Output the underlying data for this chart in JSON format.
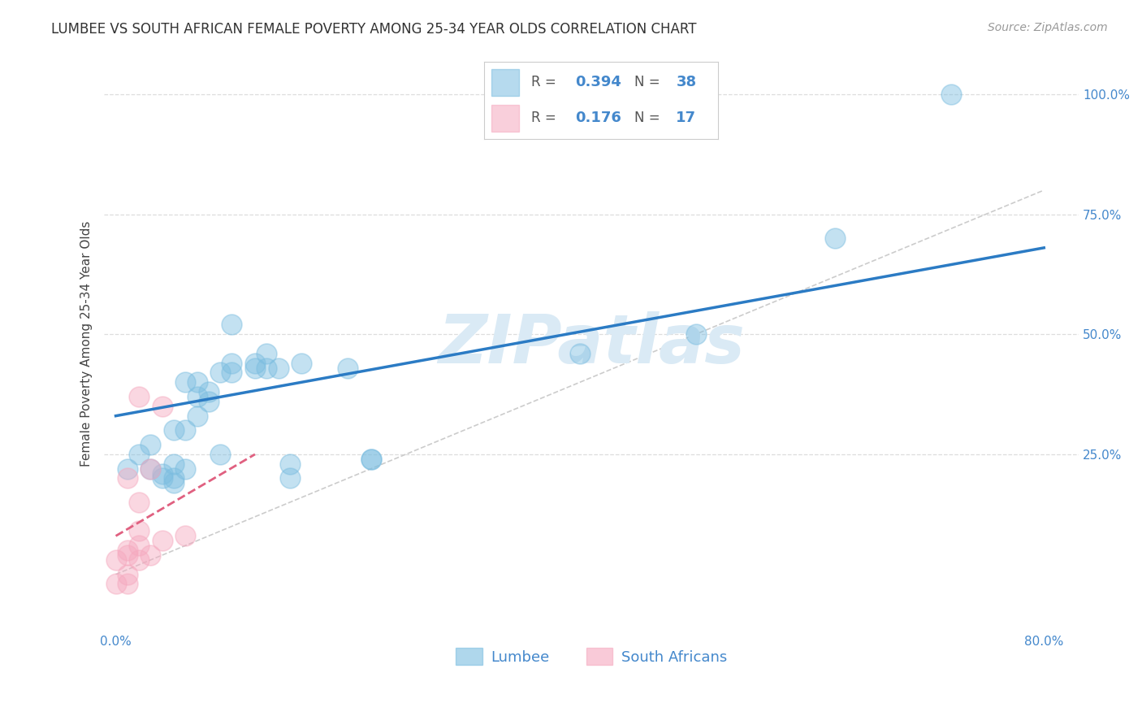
{
  "title": "LUMBEE VS SOUTH AFRICAN FEMALE POVERTY AMONG 25-34 YEAR OLDS CORRELATION CHART",
  "source": "Source: ZipAtlas.com",
  "ylabel": "Female Poverty Among 25-34 Year Olds",
  "legend_lumbee": "Lumbee",
  "legend_sa": "South Africans",
  "r_lumbee": 0.394,
  "n_lumbee": 38,
  "r_sa": 0.176,
  "n_sa": 17,
  "xlim": [
    -0.01,
    0.83
  ],
  "ylim": [
    -0.12,
    1.08
  ],
  "xtick_positions": [
    0.0,
    0.2,
    0.4,
    0.6,
    0.8
  ],
  "xtick_labels": [
    "0.0%",
    "",
    "",
    "",
    "80.0%"
  ],
  "ytick_positions": [
    0.25,
    0.5,
    0.75,
    1.0
  ],
  "ytick_labels": [
    "25.0%",
    "50.0%",
    "75.0%",
    "100.0%"
  ],
  "lumbee_color": "#7bbde0",
  "sa_color": "#f5a8be",
  "trendline_lumbee_color": "#2b7bc4",
  "trendline_sa_color": "#e06080",
  "watermark": "ZIPatlas",
  "lumbee_x": [
    0.01,
    0.02,
    0.03,
    0.03,
    0.04,
    0.04,
    0.05,
    0.05,
    0.05,
    0.05,
    0.06,
    0.06,
    0.06,
    0.07,
    0.07,
    0.07,
    0.08,
    0.08,
    0.09,
    0.09,
    0.1,
    0.1,
    0.1,
    0.12,
    0.12,
    0.13,
    0.13,
    0.14,
    0.15,
    0.15,
    0.16,
    0.2,
    0.22,
    0.22,
    0.4,
    0.5,
    0.62,
    0.72
  ],
  "lumbee_y": [
    0.22,
    0.25,
    0.27,
    0.22,
    0.2,
    0.21,
    0.19,
    0.2,
    0.23,
    0.3,
    0.22,
    0.3,
    0.4,
    0.33,
    0.37,
    0.4,
    0.36,
    0.38,
    0.25,
    0.42,
    0.42,
    0.44,
    0.52,
    0.43,
    0.44,
    0.43,
    0.46,
    0.43,
    0.2,
    0.23,
    0.44,
    0.43,
    0.24,
    0.24,
    0.46,
    0.5,
    0.7,
    1.0
  ],
  "sa_x": [
    0.0,
    0.0,
    0.01,
    0.01,
    0.01,
    0.01,
    0.01,
    0.02,
    0.02,
    0.02,
    0.02,
    0.02,
    0.03,
    0.03,
    0.04,
    0.04,
    0.06
  ],
  "sa_y": [
    -0.02,
    0.03,
    -0.02,
    0.0,
    0.04,
    0.05,
    0.2,
    0.03,
    0.06,
    0.09,
    0.15,
    0.37,
    0.04,
    0.22,
    0.07,
    0.35,
    0.08
  ],
  "lumbee_trend_x0": 0.0,
  "lumbee_trend_x1": 0.8,
  "lumbee_trend_y0": 0.33,
  "lumbee_trend_y1": 0.68,
  "sa_trend_x0": 0.0,
  "sa_trend_x1": 0.12,
  "sa_trend_y0": 0.08,
  "sa_trend_y1": 0.25,
  "refline_color": "#cccccc",
  "grid_color": "#dddddd",
  "background_color": "#ffffff",
  "title_fontsize": 12,
  "axis_label_fontsize": 11,
  "tick_fontsize": 11,
  "legend_fontsize": 13,
  "watermark_fontsize": 60,
  "watermark_color": "#daeaf5",
  "source_fontsize": 10,
  "tick_color": "#4488cc"
}
